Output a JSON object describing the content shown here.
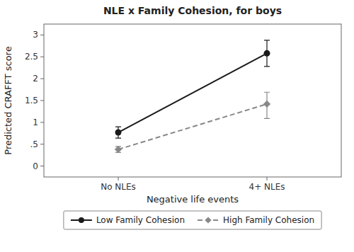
{
  "chart_data": {
    "type": "line",
    "title": "NLE x Family Cohesion, for boys",
    "x_label": "Negative life events",
    "y_label": "Predicted CRAFFT score",
    "categories": [
      "No NLEs",
      "4+ NLEs"
    ],
    "ylim": [
      -0.25,
      3.25
    ],
    "yticks": [
      0,
      {
        "value": 0.5,
        "label": ".5"
      },
      1,
      1.5,
      2,
      2.5,
      3
    ],
    "grid": false,
    "legend": "bottom",
    "series": [
      {
        "name": "Low Family Cohesion",
        "color": "#1a1a1a",
        "marker": "circle",
        "line_style": "solid",
        "values": [
          0.77,
          2.58
        ],
        "error_low": [
          0.13,
          0.3
        ],
        "error_high": [
          0.13,
          0.3
        ]
      },
      {
        "name": "High Family Cohesion",
        "color": "#888888",
        "marker": "diamond",
        "line_style": "dashed",
        "values": [
          0.38,
          1.42
        ],
        "error_low": [
          0.07,
          0.33
        ],
        "error_high": [
          0.07,
          0.27
        ]
      }
    ]
  }
}
